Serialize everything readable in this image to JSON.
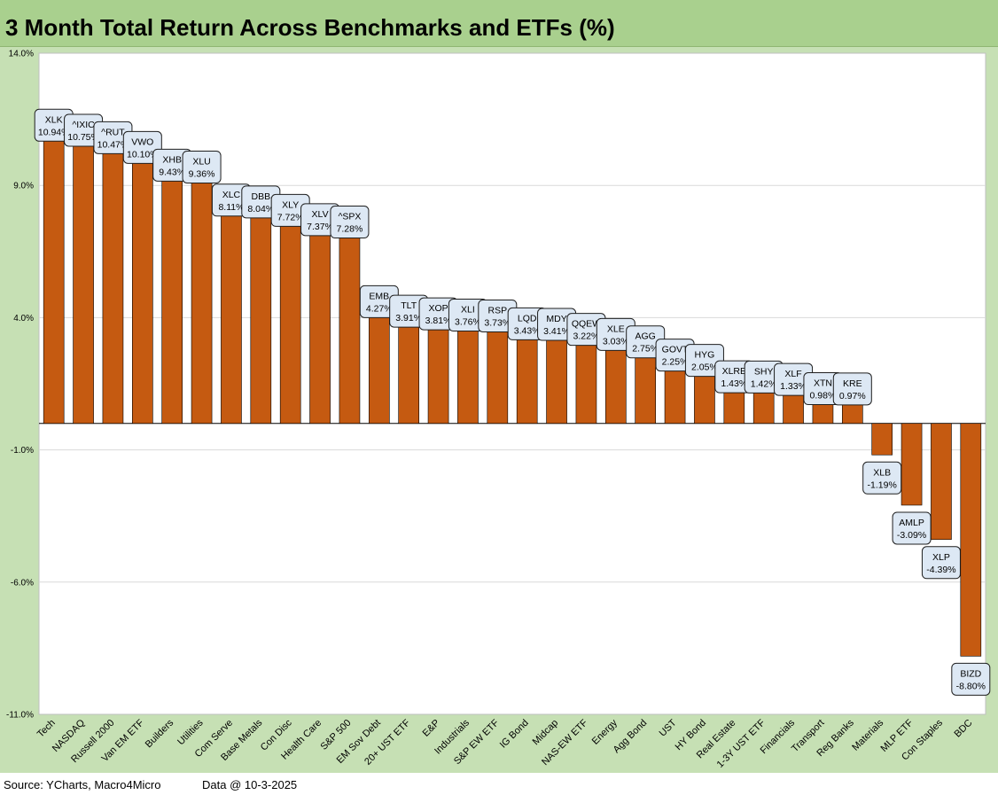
{
  "title": "3 Month Total Return Across Benchmarks and ETFs (%)",
  "footer": {
    "source": "Source: YCharts, Macro4Micro",
    "date": "Data @ 10-3-2025"
  },
  "colors": {
    "bar": "#c55a11",
    "bar_edge": "#000000",
    "frame": "#c6e0b4",
    "title_bar": "#a9d08e",
    "label_box": "#dde8f4"
  },
  "chart_data": {
    "type": "bar",
    "title": "3 Month Total Return Across Benchmarks and ETFs (%)",
    "xlabel": "",
    "ylabel": "",
    "ylim": [
      -11,
      14
    ],
    "yticks": [
      14,
      9,
      4,
      -1,
      -6,
      -11
    ],
    "ytick_labels": [
      "14.0%",
      "9.0%",
      "4.0%",
      "-1.0%",
      "-6.0%",
      "-11.0%"
    ],
    "grid": true,
    "categories": [
      "Tech",
      "NASDAQ",
      "Russell 2000",
      "Van EM ETF",
      "Builders",
      "Utilities",
      "Com Serve",
      "Base Metals",
      "Con Disc",
      "Health Care",
      "S&P 500",
      "EM Sov Debt",
      "20+ UST ETF",
      "E&P",
      "Industrials",
      "S&P EW ETF",
      "IG Bond",
      "Midcap",
      "NAS-EW ETF",
      "Energy",
      "Agg Bond",
      "UST",
      "HY Bond",
      "Real Estate",
      "1-3Y UST ETF",
      "Financials",
      "Transport",
      "Reg Banks",
      "Materials",
      "MLP ETF",
      "Con Staples",
      "BDC"
    ],
    "tickers": [
      "XLK",
      "^IXIC",
      "^RUT",
      "VWO",
      "XHB",
      "XLU",
      "XLC",
      "DBB",
      "XLY",
      "XLV",
      "^SPX",
      "EMB",
      "TLT",
      "XOP",
      "XLI",
      "RSP",
      "LQD",
      "MDY",
      "QQEW",
      "XLE",
      "AGG",
      "GOVT",
      "HYG",
      "XLRE",
      "SHY",
      "XLF",
      "XTN",
      "KRE",
      "XLB",
      "AMLP",
      "XLP",
      "BIZD"
    ],
    "value_labels": [
      "10.94%",
      "10.75%",
      "10.47%",
      "10.10%",
      "9.43%",
      "9.36%",
      "8.11%",
      "8.04%",
      "7.72%",
      "7.37%",
      "7.28%",
      "4.27%",
      "3.91%",
      "3.81%",
      "3.76%",
      "3.73%",
      "3.43%",
      "3.41%",
      "3.22%",
      "3.03%",
      "2.75%",
      "2.25%",
      "2.05%",
      "1.43%",
      "1.42%",
      "1.33%",
      "0.98%",
      "0.97%",
      "-1.19%",
      "-3.09%",
      "-4.39%",
      "-8.80%"
    ],
    "values": [
      10.94,
      10.75,
      10.47,
      10.1,
      9.43,
      9.36,
      8.11,
      8.04,
      7.72,
      7.37,
      7.28,
      4.27,
      3.91,
      3.81,
      3.76,
      3.73,
      3.43,
      3.41,
      3.22,
      3.03,
      2.75,
      2.25,
      2.05,
      1.43,
      1.42,
      1.33,
      0.98,
      0.97,
      -1.19,
      -3.09,
      -4.39,
      -8.8
    ]
  }
}
